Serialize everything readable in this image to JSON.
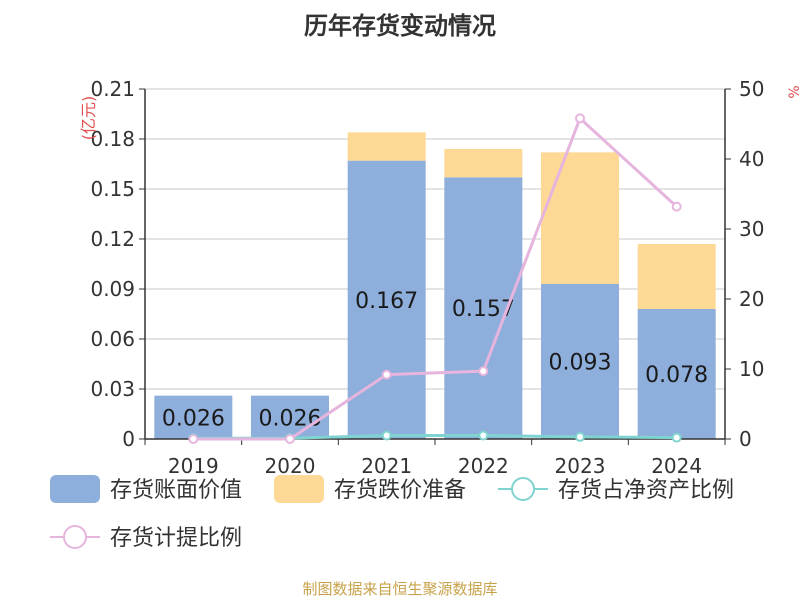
{
  "chart_data": {
    "type": "bar",
    "title": "历年存货变动情况",
    "categories": [
      "2019",
      "2020",
      "2021",
      "2022",
      "2023",
      "2024"
    ],
    "left_axis": {
      "label": "(亿元)",
      "ylim": [
        0,
        0.21
      ],
      "ticks": [
        "0",
        "0.03",
        "0.06",
        "0.09",
        "0.12",
        "0.15",
        "0.18",
        "0.21"
      ]
    },
    "right_axis": {
      "label": "%",
      "ylim": [
        0,
        50
      ],
      "ticks": [
        "0",
        "10",
        "20",
        "30",
        "40",
        "50"
      ]
    },
    "series": [
      {
        "name": "存货账面价值",
        "kind": "bar",
        "stack": "inv",
        "axis": "left",
        "color": "#8eaedc",
        "values": [
          0.026,
          0.026,
          0.167,
          0.157,
          0.093,
          0.078
        ],
        "labels": [
          "0.026",
          "0.026",
          "0.167",
          "0.157",
          "0.093",
          "0.078"
        ]
      },
      {
        "name": "存货跌价准备",
        "kind": "bar",
        "stack": "inv",
        "axis": "left",
        "color": "#fdd995",
        "values": [
          0,
          0,
          0.017,
          0.017,
          0.079,
          0.039
        ]
      },
      {
        "name": "存货占净资产比例",
        "kind": "line",
        "axis": "right",
        "color": "#7fd3d0",
        "values": [
          0.1,
          0.1,
          0.5,
          0.5,
          0.3,
          0.2
        ]
      },
      {
        "name": "存货计提比例",
        "kind": "line",
        "axis": "right",
        "color": "#e6b5de",
        "values": [
          0,
          0,
          9.2,
          9.7,
          45.8,
          33.2
        ]
      }
    ],
    "grid": true,
    "legend_position": "bottom"
  },
  "source": "制图数据来自恒生聚源数据库"
}
